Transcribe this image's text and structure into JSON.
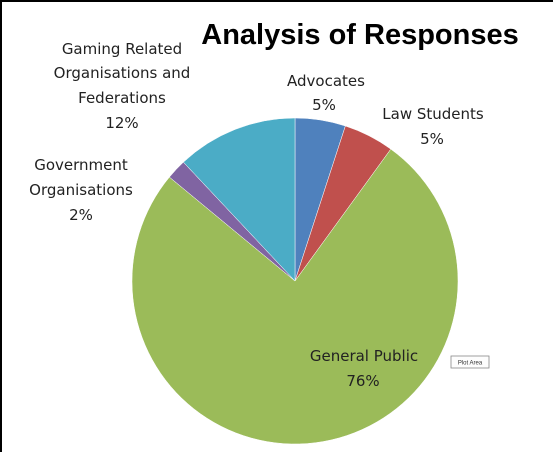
{
  "chart_data": {
    "type": "pie",
    "title": "Analysis of Responses",
    "start_angle_deg": 0,
    "direction": "clockwise",
    "slices": [
      {
        "label": "Advocates",
        "value": 5,
        "value_label": "5%",
        "color": "#4F81BD"
      },
      {
        "label": "Law Students",
        "value": 5,
        "value_label": "5%",
        "color": "#C0504D"
      },
      {
        "label": "General Public",
        "value": 76,
        "value_label": "76%",
        "color": "#9BBB59"
      },
      {
        "label": "Government Organisations",
        "value": 2,
        "value_label": "2%",
        "color": "#8064A2"
      },
      {
        "label": "Gaming Related Organisations and Federations",
        "value": 12,
        "value_label": "12%",
        "color": "#4BACC6"
      }
    ]
  },
  "labels": {
    "advocates": {
      "line1": "Advocates",
      "pct": "5%"
    },
    "law_students": {
      "line1": "Law Students",
      "pct": "5%"
    },
    "general_public": {
      "line1": "General Public",
      "pct": "76%"
    },
    "government": {
      "line1": "Government",
      "line2": "Organisations",
      "pct": "2%"
    },
    "gaming": {
      "line1": "Gaming Related",
      "line2": "Organisations and",
      "line3": "Federations",
      "pct": "12%"
    }
  },
  "plot_area_tag": "Plot Area"
}
